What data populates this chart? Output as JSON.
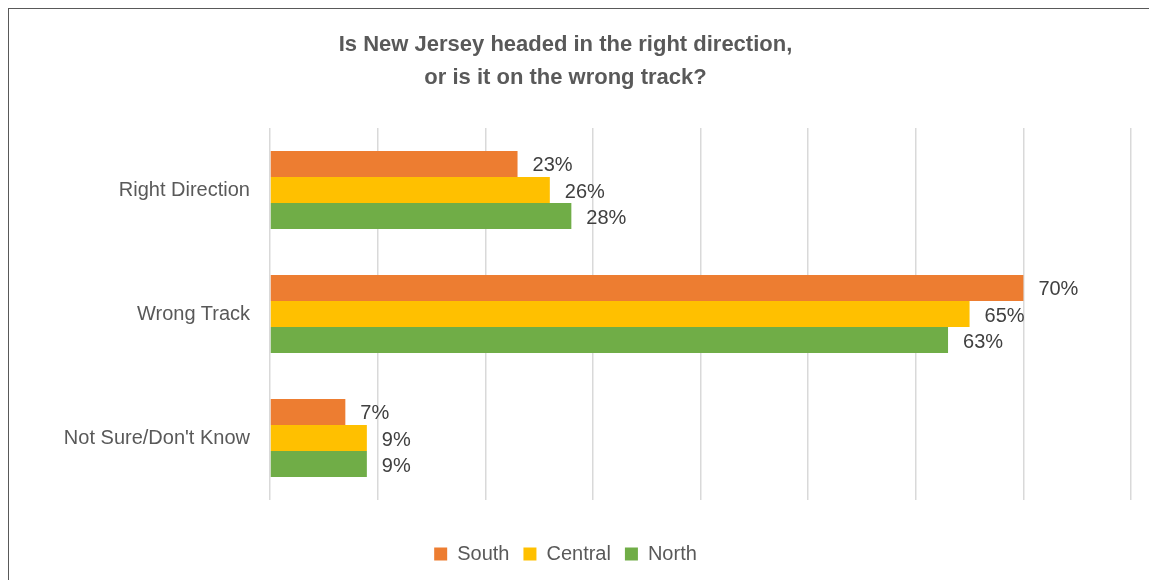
{
  "chart_data": {
    "type": "bar",
    "orientation": "horizontal",
    "title": "Is New Jersey headed in the right direction,\nor is it on the wrong track?",
    "categories": [
      "Right Direction",
      "Wrong Track",
      "Not Sure/Don't Know"
    ],
    "series": [
      {
        "name": "South",
        "color": "#ed7d31",
        "values": [
          23,
          70,
          7
        ],
        "value_labels": [
          "23%",
          "70%",
          "7%"
        ]
      },
      {
        "name": "Central",
        "color": "#ffc000",
        "values": [
          26,
          65,
          9
        ],
        "value_labels": [
          "26%",
          "65%",
          "9%"
        ]
      },
      {
        "name": "North",
        "color": "#70ad47",
        "values": [
          28,
          63,
          9
        ],
        "value_labels": [
          "28%",
          "63%",
          "9%"
        ]
      }
    ],
    "xlim": [
      0,
      80
    ],
    "xticks": [
      {
        "value": 0,
        "label": null
      },
      {
        "value": 10,
        "label": null
      },
      {
        "value": 20,
        "label": null
      },
      {
        "value": 30,
        "label": null
      },
      {
        "value": 40,
        "label": null
      },
      {
        "value": 50,
        "label": null
      },
      {
        "value": 60,
        "label": null
      },
      {
        "value": 70,
        "label": null
      },
      {
        "value": 80,
        "label": null
      }
    ],
    "grid": "x",
    "legend": "bottom",
    "tick_labels": "y"
  }
}
